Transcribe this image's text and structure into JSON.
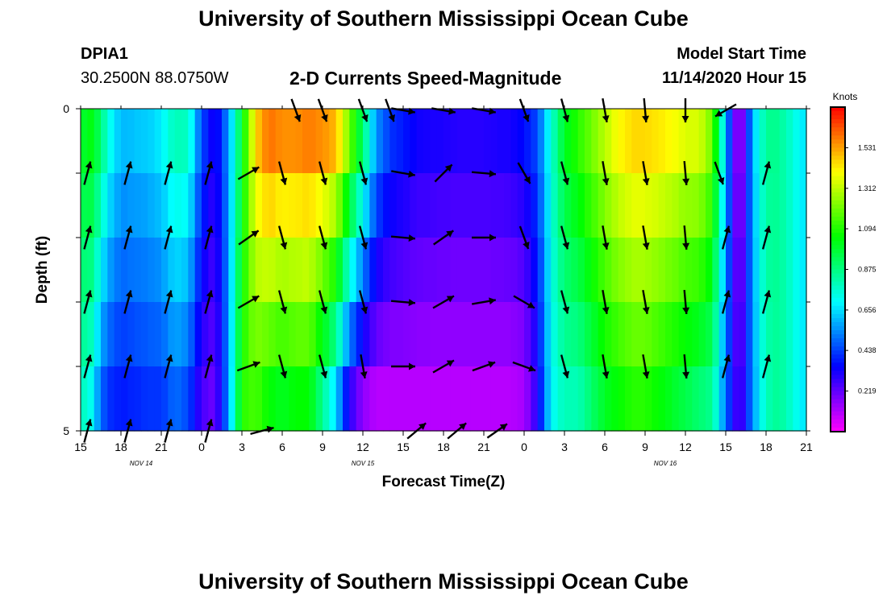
{
  "header": {
    "title": "University of Southern Mississippi Ocean Cube",
    "station_id": "DPIA1",
    "station_position": "30.2500N 88.0750W",
    "subtitle": "2-D Currents Speed-Magnitude",
    "start_label": "Model Start Time",
    "start_value": "11/14/2020 Hour 15"
  },
  "footer": {
    "title": "University of Southern Mississippi Ocean Cube"
  },
  "chart_data": {
    "type": "heatmap",
    "title": "2-D Currents Speed-Magnitude",
    "xlabel": "Forecast Time(Z)",
    "ylabel": "Depth (ft)",
    "x_range_hours": [
      0,
      54
    ],
    "y_range_ft": [
      0,
      5
    ],
    "x_tick_labels": [
      "15",
      "18",
      "21",
      "0",
      "3",
      "6",
      "9",
      "12",
      "15",
      "18",
      "21",
      "0",
      "3",
      "6",
      "9",
      "12",
      "15",
      "18",
      "21"
    ],
    "y_tick_labels": [
      "0",
      "5"
    ],
    "date_labels": [
      {
        "text": "NOV 14",
        "hour": 4.5
      },
      {
        "text": "NOV 15",
        "hour": 21
      },
      {
        "text": "NOV 16",
        "hour": 43.5
      }
    ],
    "colorbar": {
      "units": "Knots",
      "min": 0,
      "max": 1.75,
      "ticks": [
        1.531,
        1.312,
        1.094,
        0.875,
        0.656,
        0.438,
        0.219
      ],
      "tick_labels": [
        "1.531",
        "1.312",
        "1.094",
        "0.875",
        "0.656",
        "0.438",
        "0.219"
      ]
    },
    "depth_layers": 5,
    "speed_profile": {
      "hours": [
        0,
        0.5,
        1,
        1.5,
        2,
        3,
        4,
        5,
        6,
        7,
        8,
        9,
        10,
        11,
        12,
        13,
        14,
        15,
        16,
        17,
        18,
        19,
        20,
        21,
        22,
        23,
        24,
        25,
        26,
        27,
        28,
        29,
        30,
        31,
        32,
        33,
        34,
        35,
        36,
        37,
        38,
        39,
        40,
        41,
        42,
        43,
        44,
        45,
        46,
        47,
        48,
        49,
        50,
        51,
        52,
        53,
        54
      ],
      "surface_knots": [
        0.95,
        1.05,
        1.0,
        0.9,
        0.75,
        0.6,
        0.62,
        0.63,
        0.68,
        0.8,
        0.78,
        0.45,
        0.3,
        0.55,
        1.0,
        1.45,
        1.6,
        1.55,
        1.55,
        1.58,
        1.55,
        1.5,
        1.2,
        0.9,
        0.55,
        0.42,
        0.38,
        0.33,
        0.32,
        0.31,
        0.3,
        0.3,
        0.3,
        0.31,
        0.32,
        0.36,
        0.45,
        0.75,
        1.0,
        1.1,
        1.2,
        1.3,
        1.4,
        1.45,
        1.45,
        1.43,
        1.4,
        1.35,
        1.35,
        1.2,
        0.6,
        0.05,
        0.6,
        0.85,
        0.85,
        0.75,
        0.65
      ],
      "bottom_knots": [
        0.75,
        0.8,
        0.65,
        0.5,
        0.42,
        0.38,
        0.4,
        0.42,
        0.42,
        0.5,
        0.45,
        0.25,
        0.2,
        0.55,
        1.1,
        1.15,
        1.05,
        1.0,
        1.05,
        1.05,
        0.85,
        0.65,
        0.3,
        0.15,
        0.1,
        0.1,
        0.1,
        0.1,
        0.1,
        0.1,
        0.1,
        0.1,
        0.1,
        0.1,
        0.1,
        0.12,
        0.3,
        0.7,
        0.8,
        0.8,
        0.9,
        1.0,
        1.05,
        1.1,
        1.1,
        1.05,
        1.0,
        0.95,
        0.9,
        0.85,
        0.5,
        0.2,
        0.55,
        0.8,
        0.85,
        0.75,
        0.65
      ]
    },
    "vector_rows": [
      {
        "label": "row-0",
        "hours": [
          16,
          18,
          21,
          23,
          24,
          27,
          30,
          33,
          36,
          39,
          42,
          45,
          48
        ],
        "directions_deg": [
          160,
          160,
          160,
          160,
          100,
          100,
          100,
          160,
          165,
          170,
          175,
          180,
          240
        ]
      },
      {
        "label": "row-1",
        "hours": [
          0.5,
          3.5,
          6.5,
          9.5,
          12.5,
          15,
          18,
          21,
          24,
          27,
          30,
          33,
          36,
          39,
          42,
          45,
          47.5,
          51
        ],
        "directions_deg": [
          15,
          15,
          15,
          15,
          60,
          165,
          165,
          165,
          100,
          45,
          95,
          150,
          165,
          170,
          170,
          175,
          160,
          15
        ]
      },
      {
        "label": "row-2",
        "hours": [
          0.5,
          3.5,
          6.5,
          9.5,
          12.5,
          15,
          18,
          21,
          24,
          27,
          30,
          33,
          36,
          39,
          42,
          45,
          48,
          51
        ],
        "directions_deg": [
          15,
          15,
          15,
          15,
          55,
          165,
          165,
          165,
          95,
          55,
          90,
          160,
          165,
          170,
          170,
          175,
          15,
          15
        ]
      },
      {
        "label": "row-3",
        "hours": [
          0.5,
          3.5,
          6.5,
          9.5,
          12.5,
          15,
          18,
          21,
          24,
          27,
          30,
          33,
          36,
          39,
          42,
          45,
          48,
          51
        ],
        "directions_deg": [
          15,
          15,
          15,
          15,
          60,
          165,
          165,
          165,
          95,
          60,
          80,
          120,
          165,
          170,
          170,
          175,
          15,
          15
        ]
      },
      {
        "label": "row-4",
        "hours": [
          0.5,
          3.5,
          6.5,
          9.5,
          12.5,
          15,
          18,
          21,
          24,
          27,
          30,
          33,
          36,
          39,
          42,
          45,
          48,
          51
        ],
        "directions_deg": [
          15,
          15,
          15,
          15,
          70,
          165,
          165,
          170,
          90,
          60,
          70,
          110,
          165,
          170,
          170,
          175,
          15,
          15
        ]
      },
      {
        "label": "row-5",
        "hours": [
          0.5,
          3.5,
          6.5,
          9.5,
          13.5,
          25,
          28,
          31
        ],
        "directions_deg": [
          15,
          15,
          15,
          15,
          75,
          50,
          50,
          55
        ]
      }
    ]
  }
}
